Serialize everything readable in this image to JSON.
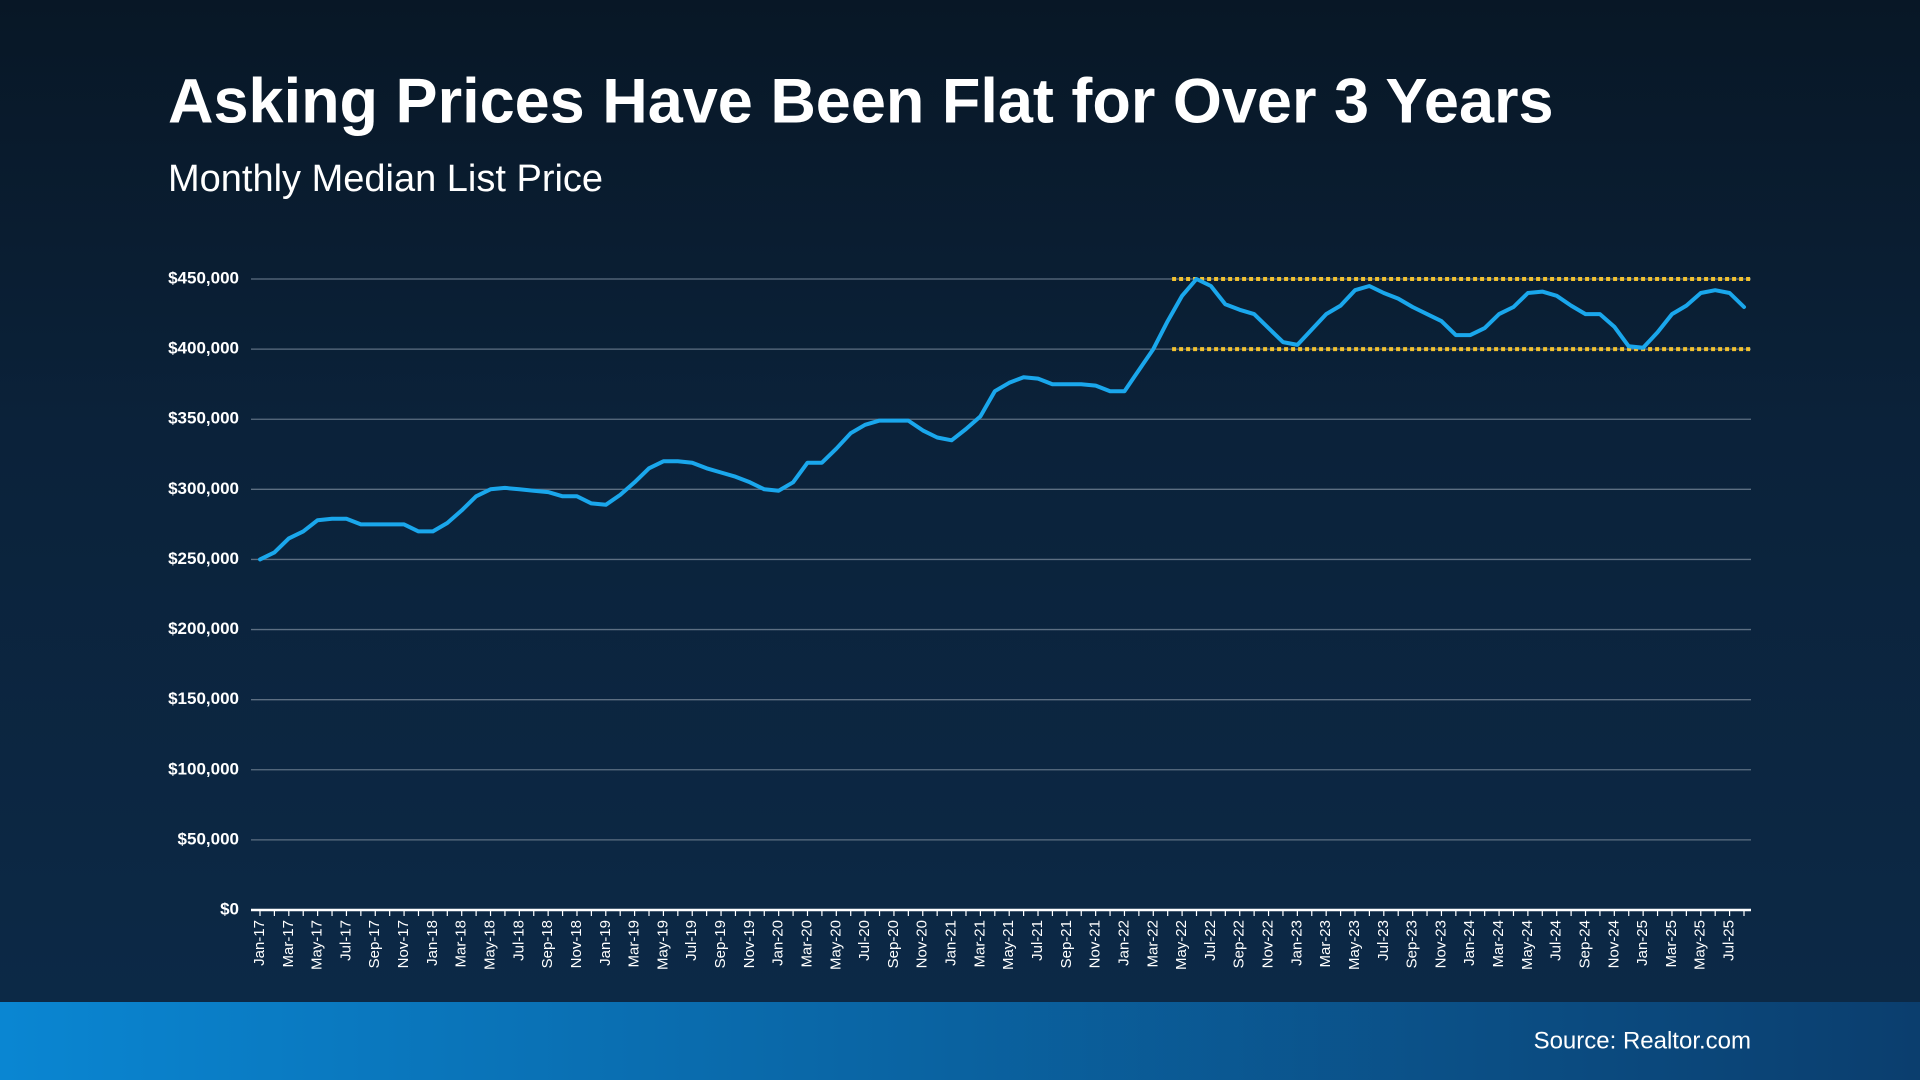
{
  "chart_data": {
    "type": "line",
    "title": "Asking Prices Have Been Flat for Over 3 Years",
    "subtitle": "Monthly Median List Price",
    "source": "Source: Realtor.com",
    "categories": [
      "Jan-17",
      null,
      "Mar-17",
      null,
      "May-17",
      null,
      "Jul-17",
      null,
      "Sep-17",
      null,
      "Nov-17",
      null,
      "Jan-18",
      null,
      "Mar-18",
      null,
      "May-18",
      null,
      "Jul-18",
      null,
      "Sep-18",
      null,
      "Nov-18",
      null,
      "Jan-19",
      null,
      "Mar-19",
      null,
      "May-19",
      null,
      "Jul-19",
      null,
      "Sep-19",
      null,
      "Nov-19",
      null,
      "Jan-20",
      null,
      "Mar-20",
      null,
      "May-20",
      null,
      "Jul-20",
      null,
      "Sep-20",
      null,
      "Nov-20",
      null,
      "Jan-21",
      null,
      "Mar-21",
      null,
      "May-21",
      null,
      "Jul-21",
      null,
      "Sep-21",
      null,
      "Nov-21",
      null,
      "Jan-22",
      null,
      "Mar-22",
      null,
      "May-22",
      null,
      "Jul-22",
      null,
      "Sep-22",
      null,
      "Nov-22",
      null,
      "Jan-23",
      null,
      "Mar-23",
      null,
      "May-23",
      null,
      "Jul-23",
      null,
      "Sep-23",
      null,
      "Nov-23",
      null,
      "Jan-24",
      null,
      "Mar-24",
      null,
      "May-24",
      null,
      "Jul-24",
      null,
      "Sep-24",
      null,
      "Nov-24",
      null,
      "Jan-25",
      null,
      "Mar-25",
      null,
      "May-25",
      null,
      "Jul-25",
      null
    ],
    "series": [
      {
        "color": "#1aa7ec",
        "values": [
          250000,
          255000,
          265000,
          270000,
          278000,
          279000,
          279000,
          275000,
          275000,
          275000,
          275000,
          270000,
          270000,
          276000,
          285000,
          295000,
          300000,
          301000,
          300000,
          299000,
          298000,
          295000,
          295000,
          290000,
          289000,
          296000,
          305000,
          315000,
          320000,
          320000,
          319000,
          315000,
          312000,
          309000,
          305000,
          300000,
          299000,
          305000,
          319000,
          319000,
          329000,
          340000,
          346000,
          349000,
          349000,
          349000,
          342000,
          337000,
          335000,
          343000,
          352000,
          370000,
          376000,
          380000,
          379000,
          375000,
          375000,
          375000,
          374000,
          370000,
          370000,
          385000,
          400000,
          420000,
          438000,
          450000,
          445000,
          432000,
          428000,
          425000,
          415000,
          405000,
          403000,
          414000,
          425000,
          431000,
          442000,
          445000,
          440000,
          436000,
          430000,
          425000,
          420000,
          410000,
          410000,
          415000,
          425000,
          430000,
          440000,
          441000,
          438000,
          431000,
          425000,
          425000,
          416000,
          402000,
          401000,
          412000,
          425000,
          431000,
          440000,
          442000,
          440000,
          430000
        ]
      }
    ],
    "ylim": [
      0,
      450000
    ],
    "yticks": [
      {
        "value": 0,
        "label": "$0"
      },
      {
        "value": 50000,
        "label": "$50,000"
      },
      {
        "value": 100000,
        "label": "$100,000"
      },
      {
        "value": 150000,
        "label": "$150,000"
      },
      {
        "value": 200000,
        "label": "$200,000"
      },
      {
        "value": 250000,
        "label": "$250,000"
      },
      {
        "value": 300000,
        "label": "$300,000"
      },
      {
        "value": 350000,
        "label": "$350,000"
      },
      {
        "value": 400000,
        "label": "$400,000"
      },
      {
        "value": 450000,
        "label": "$450,000"
      }
    ],
    "grid": true,
    "reference_lines": [
      {
        "value": 450000,
        "from": "May-22",
        "color": "#f2c230"
      },
      {
        "value": 400000,
        "from": "May-22",
        "color": "#f2c230"
      }
    ]
  }
}
